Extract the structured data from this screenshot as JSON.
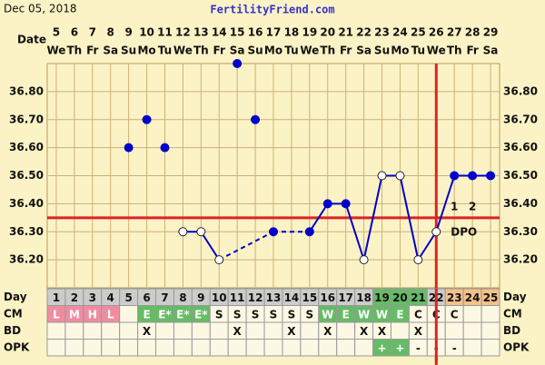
{
  "header": {
    "date": "Dec 05, 2018",
    "site": "FertilityFriend.com"
  },
  "chart_data": {
    "type": "bbt",
    "x_label": "Date",
    "categories": [
      5,
      6,
      7,
      8,
      9,
      10,
      11,
      12,
      13,
      14,
      15,
      16,
      17,
      18,
      19,
      20,
      21,
      22,
      23,
      24,
      25,
      26,
      27,
      28,
      29
    ],
    "weekdays": [
      "We",
      "Th",
      "Fr",
      "Sa",
      "Su",
      "Mo",
      "Tu",
      "We",
      "Th",
      "Fr",
      "Sa",
      "Su",
      "Mo",
      "Tu",
      "We",
      "Th",
      "Fr",
      "Sa",
      "Su",
      "Mo",
      "Tu",
      "We",
      "Th",
      "Fr",
      "Sa"
    ],
    "ylim": [
      36.1,
      36.9
    ],
    "yticks": [
      {
        "value": 36.2,
        "label": "36.20"
      },
      {
        "value": 36.3,
        "label": "36.30"
      },
      {
        "value": 36.4,
        "label": "36.40"
      },
      {
        "value": 36.5,
        "label": "36.50"
      },
      {
        "value": 36.6,
        "label": "36.60"
      },
      {
        "value": 36.7,
        "label": "36.70"
      },
      {
        "value": 36.8,
        "label": "36.80"
      }
    ],
    "grid": true,
    "series": [
      {
        "color": "#0000cc",
        "values": [
          null,
          null,
          null,
          null,
          null,
          null,
          null,
          36.3,
          36.3,
          36.2,
          null,
          null,
          36.3,
          null,
          36.3,
          36.4,
          36.4,
          36.2,
          36.5,
          36.5,
          36.2,
          36.3,
          36.5,
          36.5,
          36.5
        ],
        "open": [
          false,
          false,
          false,
          false,
          false,
          false,
          false,
          true,
          true,
          true,
          false,
          false,
          false,
          false,
          false,
          false,
          false,
          true,
          true,
          true,
          true,
          true,
          false,
          false,
          false
        ]
      },
      {
        "color": "#0000cc",
        "connected": false,
        "values": [
          null,
          null,
          null,
          null,
          36.6,
          36.7,
          36.6,
          null,
          null,
          null,
          36.9,
          36.7,
          null,
          null,
          null,
          null,
          null,
          null,
          null,
          null,
          null,
          null,
          null,
          null,
          null
        ]
      }
    ],
    "coverline": 36.35,
    "red_color": "#dd2222",
    "ovulation_day": 22,
    "dpo": {
      "label": "DPO",
      "values": [
        1,
        2
      ]
    },
    "day_row": {
      "label": "Day",
      "values": [
        1,
        2,
        3,
        4,
        5,
        6,
        7,
        8,
        9,
        10,
        11,
        12,
        13,
        14,
        15,
        16,
        17,
        18,
        19,
        20,
        21,
        22,
        23,
        24,
        25
      ],
      "colors": [
        "#cccccc",
        "#cccccc",
        "#cccccc",
        "#cccccc",
        "#cccccc",
        "#cccccc",
        "#cccccc",
        "#cccccc",
        "#cccccc",
        "#cccccc",
        "#cccccc",
        "#cccccc",
        "#cccccc",
        "#cccccc",
        "#cccccc",
        "#cccccc",
        "#cccccc",
        "#cccccc",
        "#66bb66",
        "#66bb66",
        "#66bb66",
        "#cccccc",
        "#f5c08a",
        "#f5c08a",
        "#f5c08a"
      ]
    },
    "rows": [
      {
        "label": "CM",
        "values": [
          "L",
          "M",
          "H",
          "L",
          null,
          "E",
          "E*",
          "E*",
          "E*",
          "S",
          "S",
          "S",
          "S",
          "S",
          "S",
          "W",
          "E",
          "W",
          "W",
          "E",
          "C",
          "C",
          "C",
          null,
          null
        ]
      },
      {
        "label": "BD",
        "values": [
          null,
          null,
          null,
          null,
          null,
          "X",
          null,
          null,
          null,
          null,
          "X",
          null,
          null,
          "X",
          null,
          "X",
          null,
          "X",
          "X",
          null,
          "X",
          null,
          null,
          null,
          null
        ]
      },
      {
        "label": "OPK",
        "values": [
          null,
          null,
          null,
          null,
          null,
          null,
          null,
          null,
          null,
          null,
          null,
          null,
          null,
          null,
          null,
          null,
          null,
          null,
          "+",
          "+",
          "-",
          "-",
          "-",
          null,
          null
        ]
      }
    ],
    "cell_colors": {
      "L": "#f08ca0",
      "M": "#f08ca0",
      "H": "#f08ca0",
      "E": "#66bb66",
      "E*": "#66bb66",
      "W": "#66bb66",
      "+": "#66bb66"
    }
  }
}
